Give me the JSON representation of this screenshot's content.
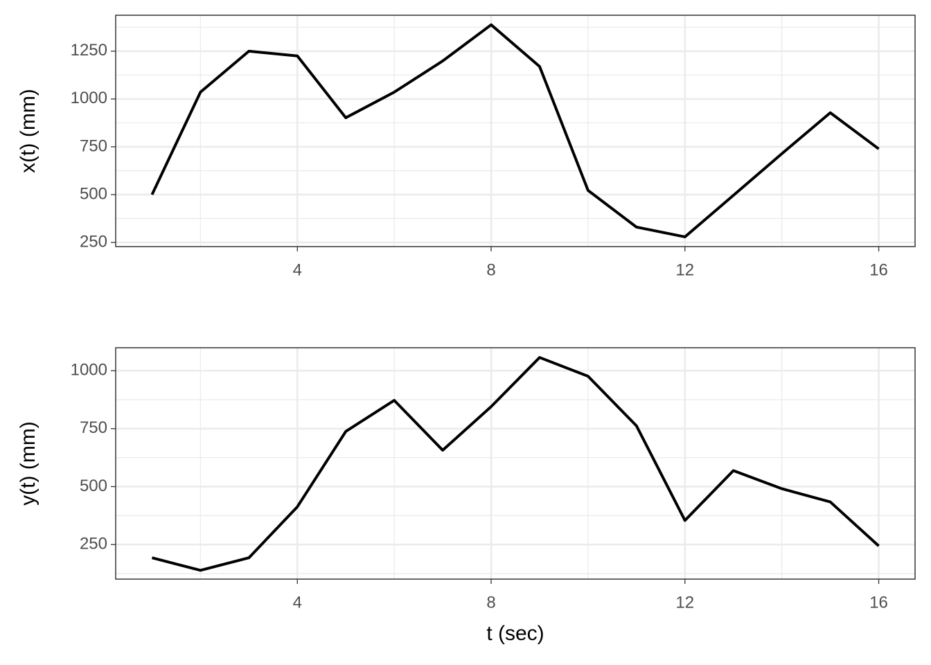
{
  "chart_data": [
    {
      "type": "line",
      "ylabel": "x(t) (mm)",
      "x": [
        1,
        2,
        3,
        4,
        5,
        6,
        7,
        8,
        9,
        10,
        11,
        12,
        13,
        14,
        15,
        16
      ],
      "series": [
        {
          "color": "#000000",
          "values": [
            500,
            1036,
            1250,
            1225,
            902,
            1036,
            1199,
            1388,
            1170,
            522,
            330,
            279,
            496,
            714,
            928,
            739
          ]
        }
      ],
      "xlim": [
        0.25,
        16.75
      ],
      "xticks": [
        4,
        8,
        12,
        16
      ],
      "minor_xticks": [
        2,
        6,
        10,
        14
      ],
      "ylim": [
        228,
        1438
      ],
      "yticks": [
        250,
        500,
        750,
        1000,
        1250
      ],
      "minor_yticks": [
        375,
        625,
        875,
        1125,
        1375
      ],
      "grid": true
    },
    {
      "type": "line",
      "ylabel": "y(t) (mm)",
      "xlabel": "t (sec)",
      "x": [
        1,
        2,
        3,
        4,
        5,
        6,
        7,
        8,
        9,
        10,
        11,
        12,
        13,
        14,
        15,
        16
      ],
      "series": [
        {
          "color": "#000000",
          "values": [
            193,
            139,
            193,
            413,
            738,
            872,
            657,
            845,
            1057,
            976,
            762,
            354,
            569,
            491,
            434,
            244
          ]
        }
      ],
      "xlim": [
        0.25,
        16.75
      ],
      "xticks": [
        4,
        8,
        12,
        16
      ],
      "minor_xticks": [
        2,
        6,
        10,
        14
      ],
      "ylim": [
        101,
        1099
      ],
      "yticks": [
        250,
        500,
        750,
        1000
      ],
      "minor_yticks": [
        125,
        375,
        625,
        875
      ],
      "grid": true
    }
  ]
}
